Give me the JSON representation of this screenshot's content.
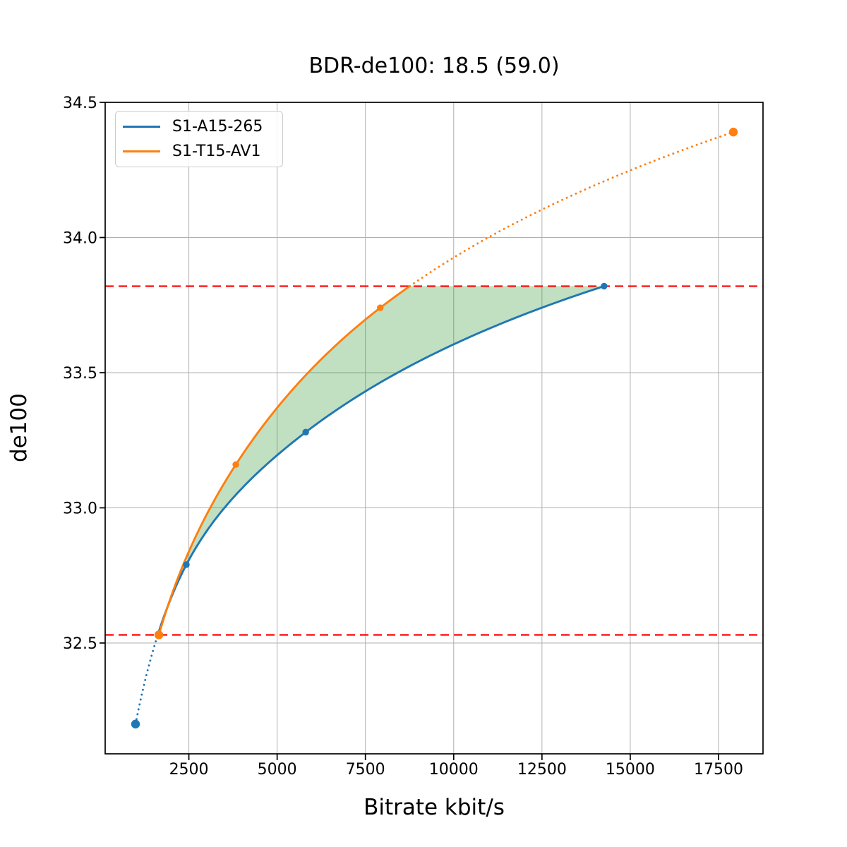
{
  "title": "BDR-de100: 18.5 (59.0)",
  "chart_data": {
    "type": "line",
    "title": "BDR-de100: 18.5 (59.0)",
    "xlabel": "Bitrate kbit/s",
    "ylabel": "de100",
    "xlim": [
      130,
      18760
    ],
    "ylim": [
      32.09,
      34.5
    ],
    "xticks": [
      2500,
      5000,
      7500,
      10000,
      12500,
      15000,
      17500
    ],
    "yticks": [
      32.5,
      33.0,
      33.5,
      34.0,
      34.5
    ],
    "grid": true,
    "grid_color": "#b0b0b0",
    "legend_position": "upper left",
    "series": [
      {
        "name": "S1-A15-265",
        "color": "#1f77b4",
        "x": [
          990,
          2430,
          5810,
          14260
        ],
        "y": [
          32.2,
          32.79,
          33.28,
          33.82
        ],
        "big_marker": [
          true,
          false,
          false,
          false
        ],
        "dotted_below_y": 32.53
      },
      {
        "name": "S1-T15-AV1",
        "color": "#ff7f0e",
        "x": [
          1650,
          3830,
          7920,
          17920
        ],
        "y": [
          32.53,
          33.16,
          33.74,
          34.39
        ],
        "big_marker": [
          true,
          false,
          false,
          true
        ],
        "dotted_above_y": 33.82
      }
    ],
    "reference_lines": [
      {
        "y": 33.82,
        "color": "#ff0000",
        "style": "dashed"
      },
      {
        "y": 32.53,
        "color": "#ff0000",
        "style": "dashed"
      }
    ],
    "fill_between": {
      "color": "#228B22",
      "opacity": 0.28,
      "x_range": [
        1650,
        14260
      ],
      "cap_y": 33.82
    }
  }
}
